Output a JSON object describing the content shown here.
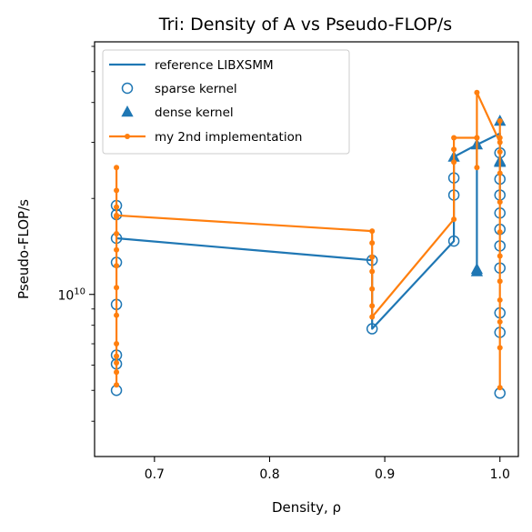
{
  "chart_data": {
    "type": "line",
    "title": "Tri: Density of A vs Pseudo-FLOP/s",
    "xlabel": "Density, ρ",
    "ylabel": "Pseudo-FLOP/s",
    "xlim": [
      0.648,
      1.016
    ],
    "ylim": [
      3100000000.0,
      62000000000.0
    ],
    "yscale": "log",
    "x_ticks": [
      0.7,
      0.8,
      0.9,
      1.0
    ],
    "x_tick_labels": [
      "0.7",
      "0.8",
      "0.9",
      "1.0"
    ],
    "y_ticks": [
      10000000000.0
    ],
    "y_tick_labels": [
      "10^10"
    ],
    "grid": false,
    "legend_position": "top-left",
    "colors": {
      "blue": "#1f77b4",
      "orange": "#ff7f0e"
    },
    "series": [
      {
        "name": "reference LIBXSMM",
        "style": "line",
        "color": "#1f77b4",
        "points": [
          [
            0.667,
            15000000000.0
          ],
          [
            0.889,
            12800000000.0
          ],
          [
            0.889,
            7800000000.0
          ],
          [
            0.96,
            14700000000.0
          ],
          [
            0.96,
            27000000000.0
          ],
          [
            0.98,
            29500000000.0
          ],
          [
            0.98,
            12000000000.0
          ],
          [
            0.98,
            29500000000.0
          ],
          [
            1.0,
            32000000000.0
          ],
          [
            1.0,
            20000000000.0
          ]
        ]
      },
      {
        "name": "sparse kernel",
        "style": "open-circle",
        "color": "#1f77b4",
        "points": [
          [
            0.667,
            5000000000.0
          ],
          [
            0.667,
            6050000000.0
          ],
          [
            0.667,
            6450000000.0
          ],
          [
            0.667,
            9300000000.0
          ],
          [
            0.667,
            12600000000.0
          ],
          [
            0.667,
            15000000000.0
          ],
          [
            0.667,
            17800000000.0
          ],
          [
            0.667,
            19000000000.0
          ],
          [
            0.889,
            7800000000.0
          ],
          [
            0.889,
            12800000000.0
          ],
          [
            0.96,
            14700000000.0
          ],
          [
            0.96,
            20500000000.0
          ],
          [
            0.96,
            23200000000.0
          ],
          [
            1.0,
            4900000000.0
          ],
          [
            1.0,
            7600000000.0
          ],
          [
            1.0,
            8750000000.0
          ],
          [
            1.0,
            12100000000.0
          ],
          [
            1.0,
            14200000000.0
          ],
          [
            1.0,
            16000000000.0
          ],
          [
            1.0,
            18000000000.0
          ],
          [
            1.0,
            20500000000.0
          ],
          [
            1.0,
            23000000000.0
          ],
          [
            1.0,
            27800000000.0
          ]
        ]
      },
      {
        "name": "dense kernel",
        "style": "triangle",
        "color": "#1f77b4",
        "points": [
          [
            0.96,
            27000000000.0
          ],
          [
            0.98,
            11800000000.0
          ],
          [
            0.98,
            12000000000.0
          ],
          [
            0.98,
            29500000000.0
          ],
          [
            1.0,
            26000000000.0
          ],
          [
            1.0,
            26200000000.0
          ],
          [
            1.0,
            35000000000.0
          ]
        ]
      },
      {
        "name": "my 2nd implementation",
        "style": "line-dot",
        "color": "#ff7f0e",
        "points": [
          [
            0.667,
            5200000000.0
          ],
          [
            0.667,
            5700000000.0
          ],
          [
            0.667,
            6100000000.0
          ],
          [
            0.667,
            6400000000.0
          ],
          [
            0.667,
            7000000000.0
          ],
          [
            0.667,
            8600000000.0
          ],
          [
            0.667,
            10500000000.0
          ],
          [
            0.667,
            12300000000.0
          ],
          [
            0.667,
            13800000000.0
          ],
          [
            0.667,
            15500000000.0
          ],
          [
            0.667,
            17500000000.0
          ],
          [
            0.667,
            18800000000.0
          ],
          [
            0.667,
            21200000000.0
          ],
          [
            0.667,
            25000000000.0
          ],
          [
            0.667,
            17700000000.0
          ],
          [
            0.889,
            15800000000.0
          ],
          [
            0.889,
            14500000000.0
          ],
          [
            0.889,
            13100000000.0
          ],
          [
            0.889,
            11800000000.0
          ],
          [
            0.889,
            10400000000.0
          ],
          [
            0.889,
            9200000000.0
          ],
          [
            0.889,
            8500000000.0
          ],
          [
            0.96,
            17200000000.0
          ],
          [
            0.96,
            26000000000.0
          ],
          [
            0.96,
            28500000000.0
          ],
          [
            0.96,
            31000000000.0
          ],
          [
            0.98,
            31000000000.0
          ],
          [
            0.98,
            25000000000.0
          ],
          [
            0.98,
            31000000000.0
          ],
          [
            0.98,
            43000000000.0
          ],
          [
            1.0,
            30000000000.0
          ],
          [
            1.0,
            35000000000.0
          ],
          [
            1.0,
            31000000000.0
          ],
          [
            1.0,
            28000000000.0
          ],
          [
            1.0,
            24000000000.0
          ],
          [
            1.0,
            19500000000.0
          ],
          [
            1.0,
            15700000000.0
          ],
          [
            1.0,
            13200000000.0
          ],
          [
            1.0,
            11000000000.0
          ],
          [
            1.0,
            9600000000.0
          ],
          [
            1.0,
            8200000000.0
          ],
          [
            1.0,
            6800000000.0
          ],
          [
            1.0,
            5100000000.0
          ]
        ]
      }
    ]
  }
}
